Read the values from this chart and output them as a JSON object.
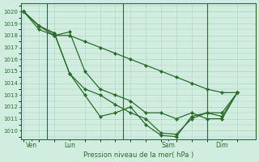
{
  "title": "Pression niveau de la mer( hPa )",
  "ylabel_values": [
    1010,
    1011,
    1012,
    1013,
    1014,
    1015,
    1016,
    1017,
    1018,
    1019,
    1020
  ],
  "ylim": [
    1009.3,
    1020.7
  ],
  "bg_color": "#d0ede0",
  "grid_color": "#b0d4c0",
  "line_color": "#2d6b2d",
  "marker": "D",
  "markersize": 2.2,
  "linewidth": 0.9,
  "day_labels": [
    "Ven",
    "Lun",
    "Sam",
    "Dim"
  ],
  "day_positions": [
    0.5,
    3.0,
    9.5,
    13.0
  ],
  "vline_positions": [
    1.5,
    6.5,
    12.0
  ],
  "xlim": [
    -0.2,
    15.2
  ],
  "total_points": 15,
  "series": [
    {
      "x": [
        0,
        1,
        2,
        3,
        4,
        5,
        6,
        7,
        8,
        9,
        10,
        11,
        12,
        13,
        14
      ],
      "y": [
        1020,
        1018.8,
        1018.0,
        1018.0,
        1017.5,
        1017.0,
        1016.5,
        1016.0,
        1015.5,
        1015.0,
        1014.5,
        1014.0,
        1013.5,
        1013.2,
        1013.2
      ]
    },
    {
      "x": [
        0,
        1,
        2,
        3,
        4,
        5,
        6,
        7,
        8,
        9,
        10,
        11,
        12,
        13,
        14
      ],
      "y": [
        1020,
        1018.5,
        1018.0,
        1018.3,
        1015.0,
        1013.5,
        1013.0,
        1012.5,
        1011.5,
        1011.5,
        1011.0,
        1011.5,
        1011.0,
        1011.0,
        1013.2
      ]
    },
    {
      "x": [
        0,
        1,
        2,
        3,
        4,
        5,
        6,
        7,
        8,
        9,
        10,
        11,
        12,
        13,
        14
      ],
      "y": [
        1020,
        1018.8,
        1018.2,
        1014.8,
        1013.5,
        1013.0,
        1012.2,
        1011.5,
        1011.0,
        1009.8,
        1009.7,
        1011.0,
        1011.5,
        1011.5,
        1013.2
      ]
    },
    {
      "x": [
        0,
        1,
        2,
        3,
        4,
        5,
        6,
        7,
        8,
        9,
        10,
        11,
        12,
        13,
        14
      ],
      "y": [
        1020,
        1018.8,
        1018.2,
        1014.8,
        1013.0,
        1011.2,
        1011.5,
        1012.0,
        1010.5,
        1009.6,
        1009.5,
        1011.2,
        1011.5,
        1011.2,
        1013.2
      ]
    }
  ]
}
